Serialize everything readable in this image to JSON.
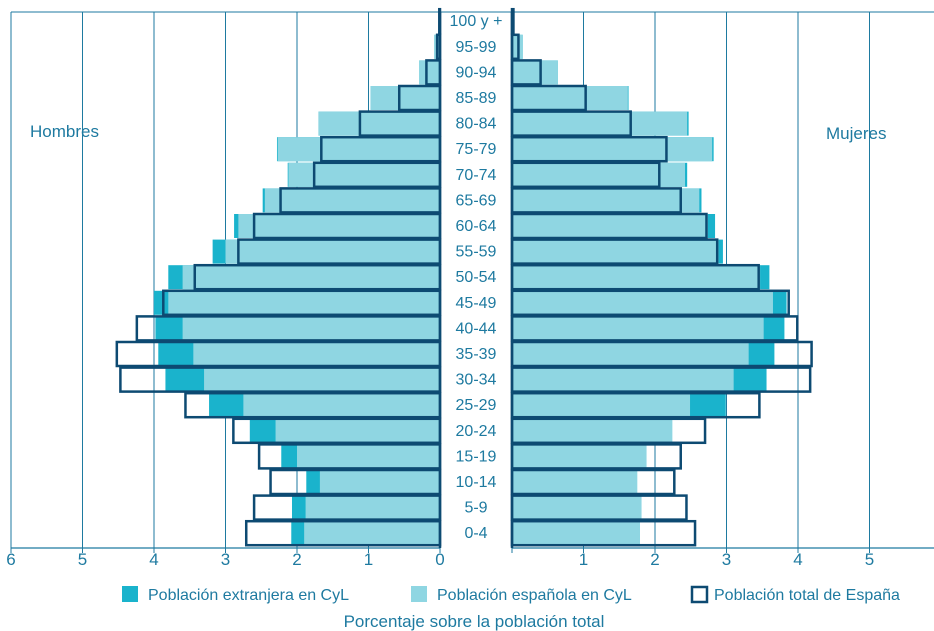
{
  "chart_data": {
    "type": "bar",
    "subtype": "population-pyramid",
    "title": "",
    "xlabel": "Porcentaje sobre la población total",
    "ylabel": "",
    "xlim": [
      0,
      6
    ],
    "x_ticks": [
      "6",
      "5",
      "4",
      "3",
      "2",
      "1",
      "0",
      "1",
      "2",
      "3",
      "4",
      "5",
      "6"
    ],
    "left_label": "Hombres",
    "right_label": "Mujeres",
    "legend_position": "bottom",
    "grid": true,
    "colors": {
      "extranjera": "#1ab3cc",
      "espanola": "#8fd6e2",
      "total_outline": "#0d4a72",
      "grid": "#1e7aa0",
      "text": "#1e7aa0"
    },
    "categories": [
      "0-4",
      "5-9",
      "10-14",
      "15-19",
      "20-24",
      "25-29",
      "30-34",
      "35-39",
      "40-44",
      "45-49",
      "50-54",
      "55-59",
      "60-64",
      "65-69",
      "70-74",
      "75-79",
      "80-84",
      "85-89",
      "90-94",
      "95-99",
      "100 y +"
    ],
    "series": [
      {
        "name": "Población extranjera en CyL",
        "men": [
          2.08,
          2.07,
          1.87,
          2.22,
          2.66,
          3.23,
          3.84,
          3.94,
          3.98,
          4.0,
          3.8,
          3.18,
          2.88,
          2.48,
          2.13,
          2.28,
          1.7,
          0.97,
          0.29,
          0.08,
          0.02
        ],
        "women": [
          1.79,
          1.81,
          1.75,
          1.88,
          2.24,
          2.99,
          3.56,
          3.67,
          3.81,
          3.84,
          3.6,
          2.95,
          2.84,
          2.65,
          2.45,
          2.82,
          2.47,
          1.63,
          0.64,
          0.15,
          0.03
        ]
      },
      {
        "name": "Población española en CyL",
        "men": [
          1.9,
          1.88,
          1.68,
          2.0,
          2.3,
          2.75,
          3.3,
          3.45,
          3.6,
          3.8,
          3.6,
          3.0,
          2.82,
          2.45,
          2.12,
          2.27,
          1.7,
          0.97,
          0.29,
          0.08,
          0.02
        ],
        "women": [
          1.79,
          1.81,
          1.75,
          1.88,
          2.24,
          2.49,
          3.1,
          3.31,
          3.52,
          3.65,
          3.47,
          2.89,
          2.74,
          2.62,
          2.42,
          2.8,
          2.45,
          1.62,
          0.64,
          0.15,
          0.03
        ]
      },
      {
        "name": "Población total de España",
        "men": [
          2.71,
          2.6,
          2.37,
          2.53,
          2.89,
          3.56,
          4.47,
          4.52,
          4.24,
          3.87,
          3.43,
          2.82,
          2.6,
          2.23,
          1.76,
          1.66,
          1.12,
          0.57,
          0.19,
          0.04,
          0.01
        ],
        "women": [
          2.56,
          2.44,
          2.27,
          2.36,
          2.7,
          3.46,
          4.17,
          4.19,
          3.99,
          3.87,
          3.45,
          2.87,
          2.72,
          2.36,
          2.06,
          2.16,
          1.66,
          1.03,
          0.4,
          0.09,
          0.02
        ]
      }
    ]
  }
}
